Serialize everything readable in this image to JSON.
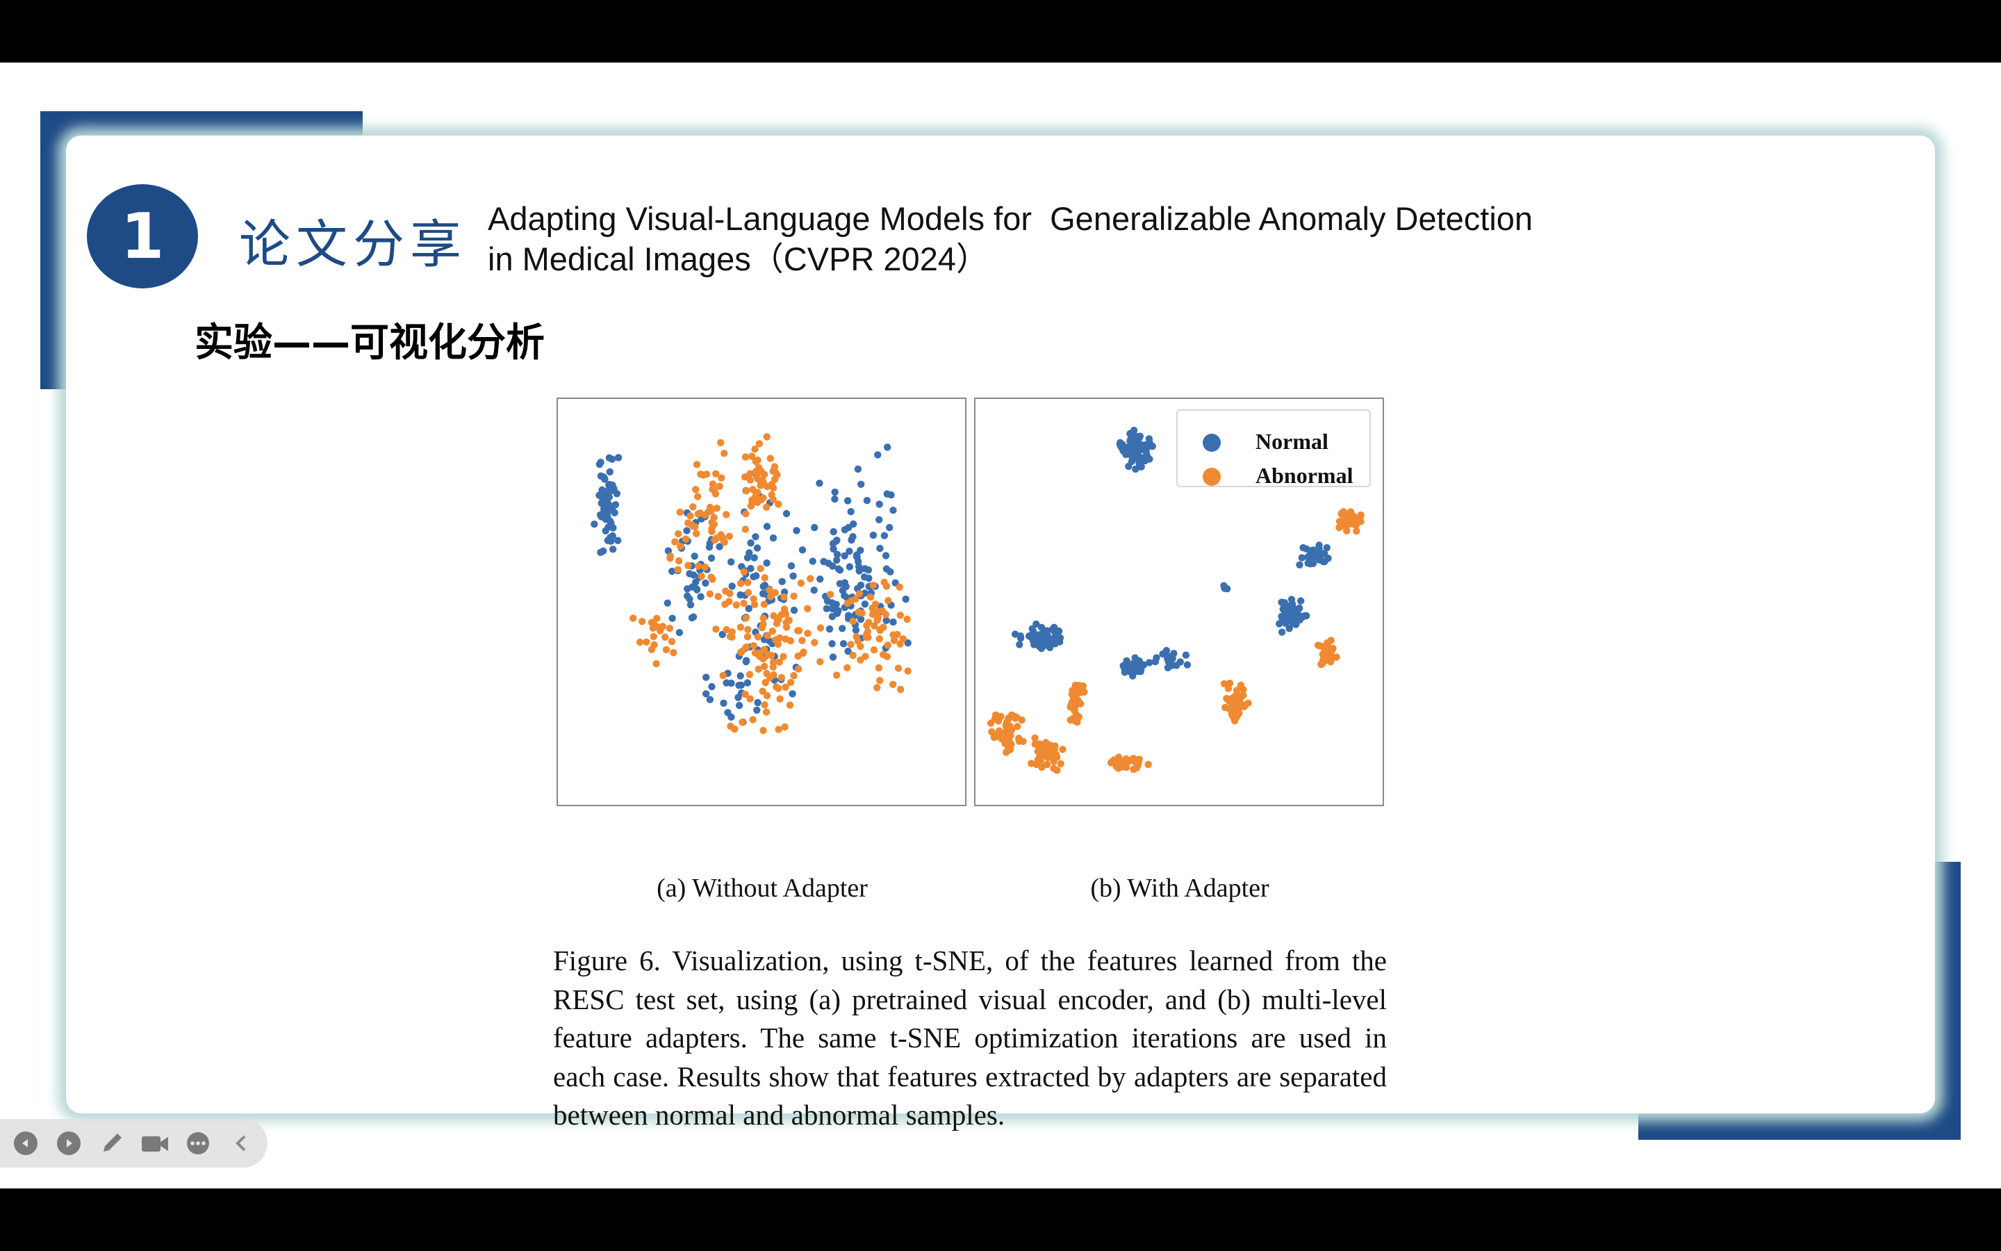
{
  "slide": {
    "section_number": "1",
    "section_label": "论文分享",
    "paper_title_line1": "Adapting Visual-Language Models for  Generalizable Anomaly Detection",
    "paper_title_line2": "in Medical Images（CVPR 2024）",
    "subheading": "实验——可视化分析"
  },
  "figure": {
    "legend": {
      "normal": "Normal",
      "abnormal": "Abnormal"
    },
    "colors": {
      "normal": "#3a6fb0",
      "abnormal": "#ef8a32"
    },
    "subcaption_a": "(a) Without Adapter",
    "subcaption_b": "(b) With Adapter",
    "caption": "Figure 6. Visualization, using t-SNE, of the features learned from the RESC test set, using (a) pretrained visual encoder, and (b) multi-level feature adapters.  The same t-SNE optimization iterations are used in each case. Results show that features extracted by adapters are separated between normal and abnormal samples."
  },
  "toolbar": {
    "icons": [
      "prev-icon",
      "next-icon",
      "pen-icon",
      "camera-icon",
      "more-icon",
      "collapse-icon"
    ]
  }
}
